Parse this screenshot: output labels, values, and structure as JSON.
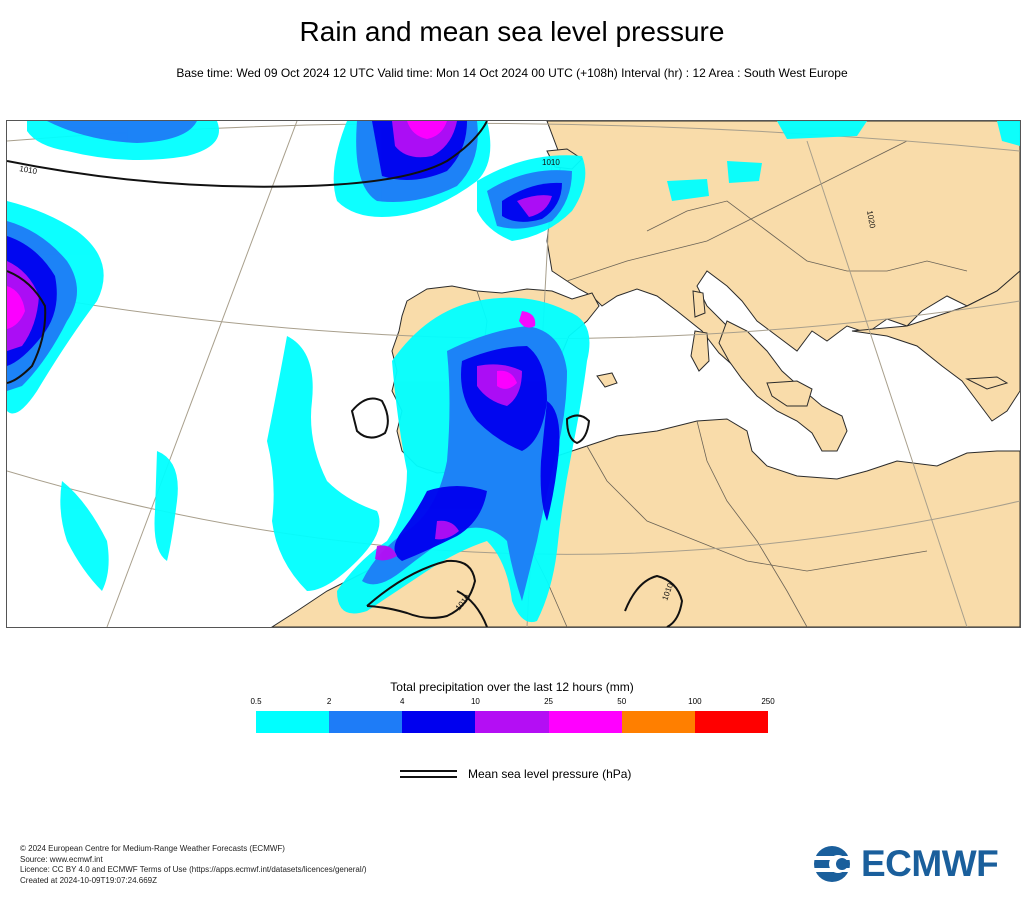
{
  "header": {
    "title": "Rain and mean sea level pressure",
    "subtitle": "Base time: Wed 09 Oct 2024 12 UTC Valid time: Mon 14 Oct 2024 00 UTC (+108h) Interval (hr) : 12 Area : South West Europe"
  },
  "map": {
    "area": "South West Europe",
    "isobar_labels": [
      "1010",
      "1010",
      "1010",
      "1020",
      "1010"
    ],
    "colors": {
      "land": "#f9dcaa",
      "sea": "#ffffff",
      "coastline": "#222222",
      "isobar": "#111111",
      "graticule": "#a89f8c"
    }
  },
  "legend": {
    "title": "Total precipitation over the last 12 hours (mm)",
    "ticks": [
      "0.5",
      "2",
      "4",
      "10",
      "25",
      "50",
      "100",
      "250"
    ],
    "colors": [
      "#00ffff",
      "#1e7cf7",
      "#0000ef",
      "#b40ef4",
      "#ff00ff",
      "#ff7f00",
      "#ff0000"
    ],
    "pressure_label": "Mean sea level pressure (hPa)"
  },
  "footer": {
    "lines": [
      "© 2024 European Centre for Medium-Range Weather Forecasts (ECMWF)",
      "Source: www.ecmwf.int",
      "Licence: CC BY 4.0 and ECMWF Terms of Use (https://apps.ecmwf.int/datasets/licences/general/)",
      "Created at 2024-10-09T19:07:24.669Z"
    ],
    "logo_text": "ECMWF"
  }
}
